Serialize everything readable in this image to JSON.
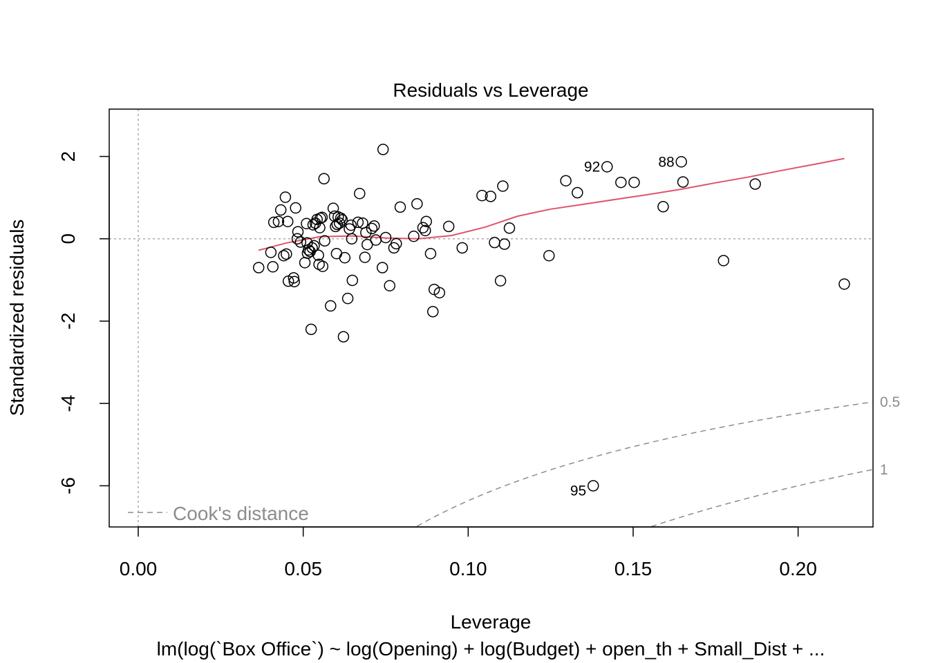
{
  "chart_data": {
    "type": "scatter",
    "title": "Residuals vs Leverage",
    "xlabel": "Leverage",
    "ylabel": "Standardized residuals",
    "subtitle": "lm(log(`Box Office`) ~ log(Opening) + log(Budget) + open_th + Small_Dist +  ...",
    "xlim": [
      -0.0088,
      0.2227
    ],
    "ylim": [
      -7.0,
      3.15
    ],
    "x_ticks": [
      0.0,
      0.05,
      0.1,
      0.15,
      0.2
    ],
    "x_tick_labels": [
      "0.00",
      "0.05",
      "0.10",
      "0.15",
      "0.20"
    ],
    "y_ticks": [
      2,
      0,
      -2,
      -4,
      -6
    ],
    "y_tick_labels": [
      "2",
      "0",
      "-2",
      "-4",
      "-6"
    ],
    "legend": {
      "label": "Cook's distance",
      "position": "bottom-left",
      "color": "#8c8c8c"
    },
    "points": [
      [
        0.0365,
        -0.7
      ],
      [
        0.0402,
        -0.33
      ],
      [
        0.0408,
        -0.68
      ],
      [
        0.0411,
        0.4
      ],
      [
        0.0425,
        0.42
      ],
      [
        0.0432,
        0.7
      ],
      [
        0.0441,
        -0.41
      ],
      [
        0.0446,
        1.01
      ],
      [
        0.0449,
        -0.37
      ],
      [
        0.0453,
        0.42
      ],
      [
        0.0455,
        -1.03
      ],
      [
        0.0471,
        -0.95
      ],
      [
        0.0473,
        -1.04
      ],
      [
        0.0477,
        0.75
      ],
      [
        0.0482,
        0.0
      ],
      [
        0.0484,
        0.17
      ],
      [
        0.0492,
        -0.08
      ],
      [
        0.0505,
        -0.58
      ],
      [
        0.051,
        0.37
      ],
      [
        0.0512,
        -0.1
      ],
      [
        0.0513,
        -0.35
      ],
      [
        0.0516,
        -0.27
      ],
      [
        0.0521,
        -0.31
      ],
      [
        0.0524,
        -2.2
      ],
      [
        0.0527,
        -0.22
      ],
      [
        0.053,
        0.34
      ],
      [
        0.0533,
        -0.17
      ],
      [
        0.0537,
        0.38
      ],
      [
        0.0542,
        0.47
      ],
      [
        0.0546,
        -0.4
      ],
      [
        0.0548,
        -0.62
      ],
      [
        0.055,
        0.27
      ],
      [
        0.0552,
        0.5
      ],
      [
        0.0557,
        0.52
      ],
      [
        0.0559,
        -0.67
      ],
      [
        0.0563,
        1.46
      ],
      [
        0.0565,
        -0.05
      ],
      [
        0.0583,
        -1.63
      ],
      [
        0.0591,
        0.74
      ],
      [
        0.0595,
        0.55
      ],
      [
        0.0598,
        0.3
      ],
      [
        0.0601,
        -0.36
      ],
      [
        0.0603,
        0.35
      ],
      [
        0.0606,
        0.53
      ],
      [
        0.061,
        0.38
      ],
      [
        0.0614,
        0.5
      ],
      [
        0.0618,
        0.46
      ],
      [
        0.0622,
        -2.38
      ],
      [
        0.0626,
        -0.46
      ],
      [
        0.0635,
        -1.45
      ],
      [
        0.064,
        0.24
      ],
      [
        0.0645,
        0.33
      ],
      [
        0.0647,
        0.0
      ],
      [
        0.0649,
        -1.01
      ],
      [
        0.0666,
        0.4
      ],
      [
        0.0671,
        1.1
      ],
      [
        0.068,
        0.38
      ],
      [
        0.0687,
        -0.45
      ],
      [
        0.069,
        0.15
      ],
      [
        0.0694,
        -0.14
      ],
      [
        0.0708,
        0.25
      ],
      [
        0.0715,
        0.31
      ],
      [
        0.072,
        -0.03
      ],
      [
        0.074,
        -0.7
      ],
      [
        0.0742,
        2.17
      ],
      [
        0.075,
        0.03
      ],
      [
        0.0762,
        -1.14
      ],
      [
        0.0775,
        -0.22
      ],
      [
        0.0782,
        -0.12
      ],
      [
        0.0794,
        0.77
      ],
      [
        0.0835,
        0.06
      ],
      [
        0.0845,
        0.85
      ],
      [
        0.0863,
        0.27
      ],
      [
        0.087,
        0.2
      ],
      [
        0.0873,
        0.42
      ],
      [
        0.0886,
        -0.36
      ],
      [
        0.0893,
        -1.77
      ],
      [
        0.0897,
        -1.23
      ],
      [
        0.0913,
        -1.31
      ],
      [
        0.0941,
        0.3
      ],
      [
        0.0982,
        -0.22
      ],
      [
        0.1042,
        1.05
      ],
      [
        0.1068,
        1.03
      ],
      [
        0.108,
        -0.09
      ],
      [
        0.1098,
        -1.02
      ],
      [
        0.1105,
        1.28
      ],
      [
        0.111,
        -0.13
      ],
      [
        0.1125,
        0.26
      ],
      [
        0.1245,
        -0.41
      ],
      [
        0.1296,
        1.41
      ],
      [
        0.1331,
        1.12
      ],
      [
        0.1421,
        1.75
      ],
      [
        0.1463,
        1.37
      ],
      [
        0.1503,
        1.37
      ],
      [
        0.1379,
        -6.0
      ],
      [
        0.1591,
        0.78
      ],
      [
        0.1646,
        1.87
      ],
      [
        0.1651,
        1.38
      ],
      [
        0.1774,
        -0.53
      ],
      [
        0.187,
        1.33
      ],
      [
        0.214,
        -1.1
      ]
    ],
    "labeled_points": [
      {
        "label": "92",
        "x": 0.1421,
        "y": 1.75
      },
      {
        "label": "88",
        "x": 0.1646,
        "y": 1.87
      },
      {
        "label": "95",
        "x": 0.1379,
        "y": -6.0
      }
    ],
    "smoother": {
      "color": "#DF536B",
      "x": [
        0.0365,
        0.045,
        0.055,
        0.065,
        0.075,
        0.085,
        0.095,
        0.105,
        0.115,
        0.125,
        0.135,
        0.145,
        0.155,
        0.165,
        0.175,
        0.185,
        0.195,
        0.205,
        0.214
      ],
      "y": [
        -0.28,
        -0.1,
        0.05,
        0.07,
        0.02,
        0.0,
        0.08,
        0.28,
        0.55,
        0.72,
        0.84,
        0.96,
        1.08,
        1.21,
        1.36,
        1.5,
        1.66,
        1.81,
        1.95
      ]
    },
    "cooks_contours": [
      {
        "label": "0.5",
        "level": 0.5
      },
      {
        "label": "1",
        "level": 1.0
      }
    ],
    "n_coefficients": 9
  }
}
